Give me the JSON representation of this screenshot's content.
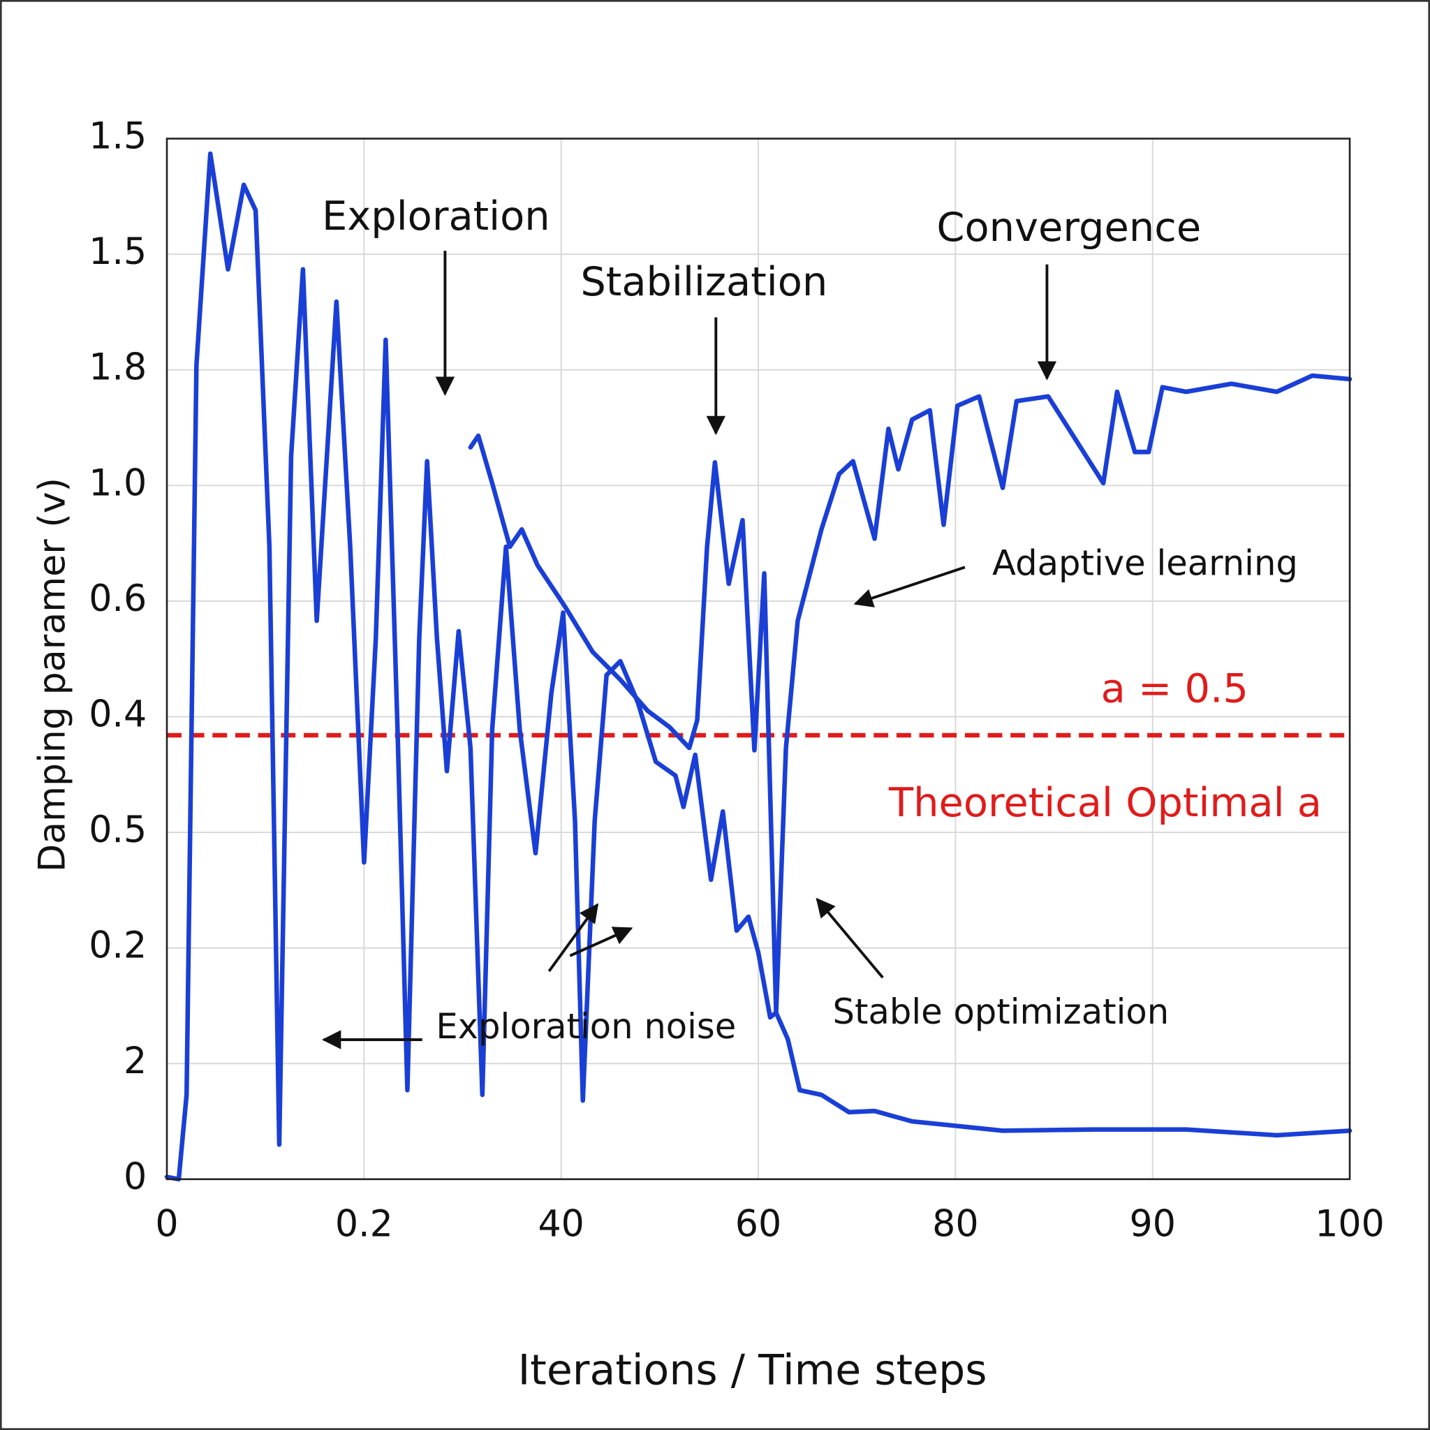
{
  "chart_data": {
    "type": "line",
    "xlabel": "Iterations / Time steps",
    "ylabel": "Damping paramer (v)",
    "xlim": [
      0,
      6
    ],
    "xticks": [
      {
        "value": 0,
        "label": "0"
      },
      {
        "value": 1,
        "label": "0.2"
      },
      {
        "value": 2,
        "label": "40"
      },
      {
        "value": 3,
        "label": "60"
      },
      {
        "value": 4,
        "label": "80"
      },
      {
        "value": 5,
        "label": "90"
      },
      {
        "value": 6,
        "label": "100"
      }
    ],
    "ylim": [
      0,
      9
    ],
    "yticks": [
      {
        "value": 0,
        "label": "0"
      },
      {
        "value": 1,
        "label": "2"
      },
      {
        "value": 2,
        "label": "0.2"
      },
      {
        "value": 3,
        "label": "0.5"
      },
      {
        "value": 4,
        "label": "0.4"
      },
      {
        "value": 5,
        "label": "0.6"
      },
      {
        "value": 6,
        "label": "1.0"
      },
      {
        "value": 7,
        "label": "1.8"
      },
      {
        "value": 8,
        "label": "1.5"
      },
      {
        "value": 9,
        "label": "1.5"
      }
    ],
    "grid": true,
    "series": [
      {
        "color": "#1a3fd6",
        "x": [
          0,
          0.06,
          0.1,
          0.15,
          0.22,
          0.31,
          0.39,
          0.45,
          0.52,
          0.57,
          0.63,
          0.69,
          0.76,
          0.86,
          0.93,
          1.0,
          1.06,
          1.11,
          1.17,
          1.22,
          1.28,
          1.32,
          1.37,
          1.42,
          1.48,
          1.54,
          1.6,
          1.65,
          1.72,
          1.79,
          1.87,
          1.95,
          2.01,
          2.07,
          2.11,
          2.17,
          2.23,
          2.3,
          2.39,
          2.48,
          2.58,
          2.62,
          2.68,
          2.76,
          2.82,
          2.89,
          2.95,
          3.0,
          3.06,
          3.09,
          3.15,
          3.21,
          3.32,
          3.46,
          3.59,
          3.78,
          4.01,
          4.24,
          4.7,
          5.17,
          5.63,
          6.0
        ],
        "values": [
          0.02,
          0,
          0.73,
          7.04,
          8.87,
          7.87,
          8.6,
          8.38,
          5.47,
          0.3,
          6.25,
          7.87,
          4.83,
          7.59,
          5.47,
          2.74,
          4.68,
          7.26,
          3.89,
          0.77,
          4.68,
          6.21,
          4.68,
          3.53,
          4.74,
          3.73,
          0.73,
          3.89,
          5.47,
          3.89,
          2.82,
          4.2,
          4.9,
          3.1,
          0.68,
          3.1,
          4.36,
          4.48,
          4.12,
          3.61,
          3.49,
          3.22,
          3.67,
          2.59,
          3.18,
          2.15,
          2.27,
          1.96,
          1.4,
          1.44,
          1.21,
          0.77,
          0.73,
          0.58,
          0.59,
          0.5,
          0.46,
          0.42,
          0.43,
          0.43,
          0.38,
          0.42
        ]
      },
      {
        "color": "#1a3fd6",
        "x": [
          1.54,
          1.58,
          1.65,
          1.74,
          1.8,
          1.88,
          2.02,
          2.16,
          2.3,
          2.44,
          2.55,
          2.65,
          2.69,
          2.74,
          2.78,
          2.85,
          2.92,
          2.98,
          3.03,
          3.09,
          3.14,
          3.2,
          3.32,
          3.41,
          3.48,
          3.59,
          3.66,
          3.71,
          3.78,
          3.87,
          3.94,
          4.01,
          4.12,
          4.24,
          4.31,
          4.47,
          4.75,
          4.82,
          4.91,
          4.98,
          5.05,
          5.17,
          5.4,
          5.63,
          5.81,
          6.0
        ],
        "values": [
          6.33,
          6.43,
          6.02,
          5.47,
          5.62,
          5.31,
          4.95,
          4.56,
          4.32,
          4.05,
          3.91,
          3.73,
          3.97,
          5.47,
          6.2,
          5.15,
          5.7,
          3.71,
          5.24,
          1.44,
          3.73,
          4.83,
          5.62,
          6.1,
          6.21,
          5.54,
          6.49,
          6.14,
          6.57,
          6.65,
          5.66,
          6.69,
          6.77,
          5.98,
          6.73,
          6.77,
          6.02,
          6.81,
          6.29,
          6.29,
          6.85,
          6.81,
          6.88,
          6.81,
          6.95,
          6.92
        ]
      }
    ],
    "reference_line": {
      "value": 3.84,
      "color": "#e01b1b",
      "style": "dashed",
      "label": "a = 0.5",
      "sublabel": "Theoretical Optimal a"
    },
    "annotations": [
      "Exploration",
      "Stabilization",
      "Convergence",
      "Adaptive learning",
      "Exploration noise",
      "Stable optimization"
    ]
  }
}
